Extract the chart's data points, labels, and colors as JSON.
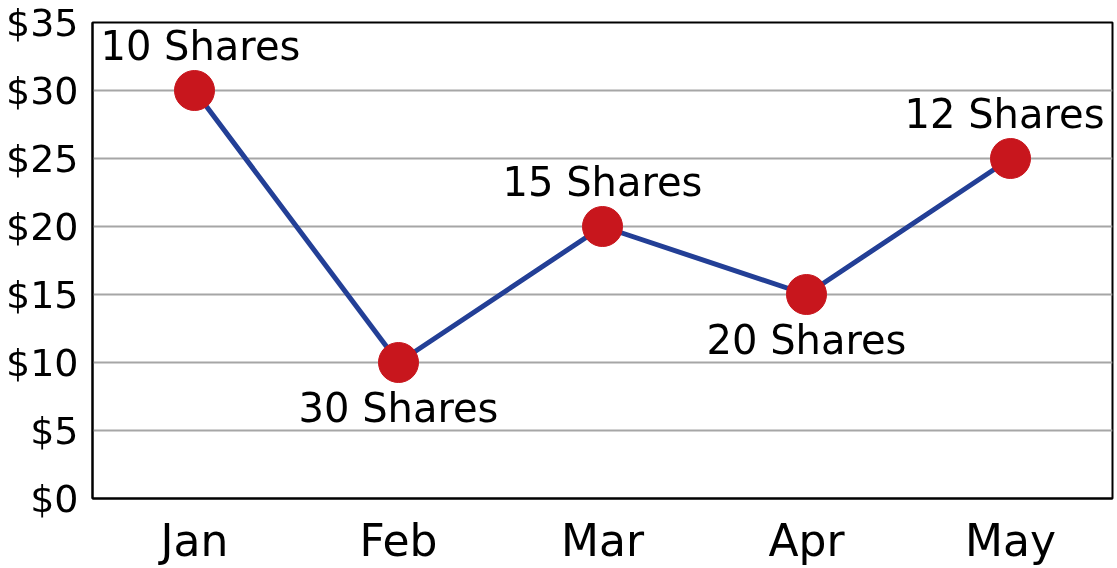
{
  "chart_data": {
    "type": "line",
    "categories": [
      "Jan",
      "Feb",
      "Mar",
      "Apr",
      "May"
    ],
    "series": [
      {
        "color": "#233f96",
        "colors": [
          "#c8161d",
          "#c8161d",
          "#c8161d",
          "#c8161d",
          "#c8161d"
        ],
        "values": [
          30,
          10,
          20,
          15,
          25
        ]
      }
    ],
    "annotations": [
      {
        "text": "10 Shares",
        "x": "Jan",
        "y": 30
      },
      {
        "text": "30 Shares",
        "x": "Feb",
        "y": 10
      },
      {
        "text": "15 Shares",
        "x": "Mar",
        "y": 20
      },
      {
        "text": "20 Shares",
        "x": "Apr",
        "y": 15
      },
      {
        "text": "12 Shares",
        "x": "May",
        "y": 25
      }
    ],
    "ylim": [
      0,
      35
    ],
    "yticks": [
      {
        "value": 0,
        "label": "$0"
      },
      {
        "value": 5,
        "label": "$5"
      },
      {
        "value": 10,
        "label": "$10"
      },
      {
        "value": 15,
        "label": "$15"
      },
      {
        "value": 20,
        "label": "$20"
      },
      {
        "value": 25,
        "label": "$25"
      },
      {
        "value": 30,
        "label": "$30"
      },
      {
        "value": 35,
        "label": "$35"
      }
    ],
    "grid": "y",
    "marker": "circle",
    "line_style": "solid"
  }
}
